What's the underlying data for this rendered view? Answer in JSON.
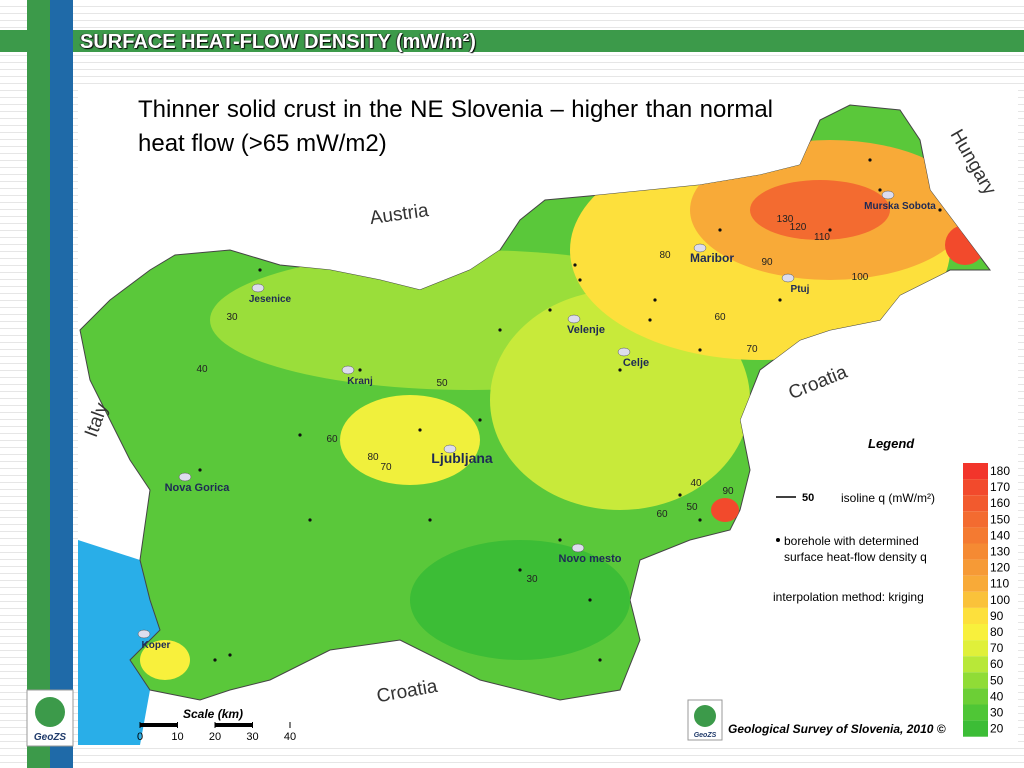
{
  "header": {
    "title": "SURFACE HEAT-FLOW DENSITY (mW/m²)"
  },
  "body": {
    "text": "Thinner solid crust in the NE Slovenia – higher than normal heat flow (>65 mW/m2)"
  },
  "map": {
    "countries": [
      "Austria",
      "Hungary",
      "Croatia",
      "Italy",
      "Croatia"
    ],
    "cities": [
      "Murska Sobota",
      "Maribor",
      "Ptuj",
      "Jesenice",
      "Velenje",
      "Celje",
      "Kranj",
      "Ljubljana",
      "Nova Gorica",
      "Novo mesto",
      "Koper"
    ],
    "isolines": [
      130,
      120,
      110,
      80,
      90,
      100,
      60,
      70,
      30,
      40,
      50,
      60,
      80,
      70,
      40,
      90,
      50,
      60,
      30
    ]
  },
  "legend": {
    "title": "Legend",
    "isoline_value": "50",
    "isoline_label": "isoline q (mW/m²)",
    "borehole_label": "borehole with determined surface heat-flow density q",
    "method": "interpolation method: kriging",
    "scale": [
      180,
      170,
      160,
      150,
      140,
      130,
      120,
      110,
      100,
      90,
      80,
      70,
      60,
      50,
      40,
      30,
      20
    ],
    "colors": [
      "#f2352b",
      "#f24a2c",
      "#f25a2e",
      "#f36b30",
      "#f47a31",
      "#f58a33",
      "#f69a36",
      "#f8aa38",
      "#fac23a",
      "#fde03c",
      "#f8f03c",
      "#e0f03a",
      "#b8e838",
      "#90dc36",
      "#6ccf36",
      "#4fc636",
      "#3cbd36"
    ]
  },
  "scale_bar": {
    "title": "Scale (km)",
    "ticks": [
      0,
      10,
      20,
      30,
      40
    ]
  },
  "logo": {
    "left": "GeoZS",
    "right": "GeoZS"
  },
  "credit": "Geological Survey of Slovenia, 2010 ©"
}
